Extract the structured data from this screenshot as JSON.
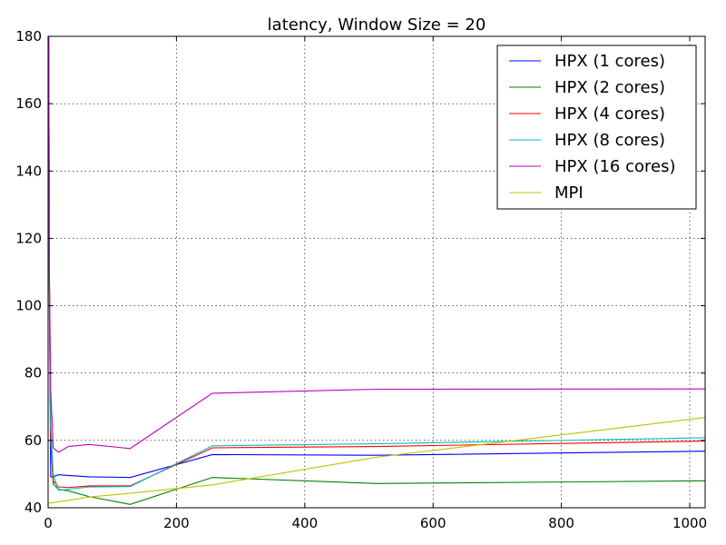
{
  "chart_data": {
    "type": "line",
    "title": "latency, Window Size = 20",
    "xlabel": "",
    "ylabel": "",
    "xlim": [
      0,
      1024
    ],
    "ylim": [
      40,
      180
    ],
    "xticks": [
      0,
      200,
      400,
      600,
      800,
      1000
    ],
    "yticks": [
      40,
      60,
      80,
      100,
      120,
      140,
      160,
      180
    ],
    "grid": true,
    "legend_position": "top-right",
    "series": [
      {
        "name": "HPX (1 cores)",
        "color": "#0000ff",
        "x": [
          1,
          2,
          4,
          8,
          16,
          32,
          64,
          128,
          256,
          512,
          1024
        ],
        "y": [
          180,
          110,
          49.2,
          49.2,
          49.8,
          49.6,
          49.2,
          49.0,
          55.8,
          55.6,
          56.8
        ]
      },
      {
        "name": "HPX (2 cores)",
        "color": "#008000",
        "x": [
          1,
          2,
          4,
          8,
          16,
          32,
          64,
          128,
          256,
          512,
          1024
        ],
        "y": [
          180,
          98,
          60,
          47,
          45.5,
          45.0,
          43.3,
          41.0,
          49.0,
          47.2,
          48.0
        ]
      },
      {
        "name": "HPX (4 cores)",
        "color": "#ff0000",
        "x": [
          1,
          2,
          4,
          8,
          16,
          32,
          64,
          128,
          256,
          512,
          1024
        ],
        "y": [
          180,
          105,
          62,
          48,
          46.2,
          46.0,
          46.5,
          46.5,
          57.8,
          58.2,
          59.8
        ]
      },
      {
        "name": "HPX (8 cores)",
        "color": "#00bfbf",
        "x": [
          1,
          2,
          4,
          8,
          16,
          32,
          64,
          128,
          256,
          512,
          1024
        ],
        "y": [
          180,
          108,
          65,
          50,
          45.2,
          45.5,
          46.2,
          46.3,
          58.4,
          59.0,
          60.8
        ]
      },
      {
        "name": "HPX (16 cores)",
        "color": "#bf00bf",
        "x": [
          1,
          2,
          4,
          8,
          16,
          32,
          64,
          128,
          256,
          512,
          1024
        ],
        "y": [
          180,
          110,
          75,
          57.8,
          56.5,
          58.2,
          58.8,
          57.6,
          74.0,
          75.2,
          75.3
        ]
      },
      {
        "name": "MPI",
        "color": "#bfbf00",
        "x": [
          1,
          2,
          4,
          8,
          16,
          32,
          64,
          128,
          256,
          512,
          1024
        ],
        "y": [
          41.3,
          41.4,
          41.4,
          41.5,
          41.8,
          42.2,
          43.2,
          44.3,
          46.8,
          55.0,
          66.8
        ]
      }
    ]
  }
}
